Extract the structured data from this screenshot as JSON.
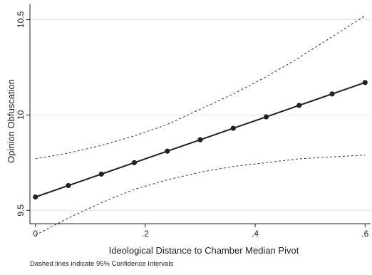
{
  "chart_data": {
    "type": "line",
    "title": "",
    "xlabel": "Ideological Distance to Chamber Median Pivot",
    "ylabel": "Opinion Obfuscation",
    "note": "Dashed lines indicate 95% Confidence Intervals",
    "xlim": [
      -0.01,
      0.61
    ],
    "ylim": [
      9.43,
      10.58
    ],
    "x_ticks": [
      0,
      0.2,
      0.4,
      0.6
    ],
    "x_tick_labels": [
      "0",
      ".2",
      ".4",
      ".6"
    ],
    "y_ticks": [
      9.5,
      10,
      10.5
    ],
    "y_tick_labels": [
      "9.5",
      "10",
      "10.5"
    ],
    "grid": "horizontal",
    "series": [
      {
        "role": "estimate",
        "style": "solid-with-markers",
        "x": [
          0,
          0.06,
          0.12,
          0.18,
          0.24,
          0.3,
          0.36,
          0.42,
          0.48,
          0.54,
          0.6
        ],
        "y": [
          9.57,
          9.63,
          9.69,
          9.75,
          9.81,
          9.87,
          9.93,
          9.99,
          10.05,
          10.11,
          10.17
        ]
      },
      {
        "role": "upper-95-ci",
        "style": "dashed",
        "x": [
          0,
          0.06,
          0.12,
          0.18,
          0.24,
          0.3,
          0.36,
          0.42,
          0.48,
          0.54,
          0.6
        ],
        "y": [
          9.77,
          9.8,
          9.84,
          9.89,
          9.95,
          10.03,
          10.11,
          10.2,
          10.3,
          10.41,
          10.52
        ]
      },
      {
        "role": "lower-95-ci",
        "style": "dashed",
        "x": [
          0,
          0.06,
          0.12,
          0.18,
          0.24,
          0.3,
          0.36,
          0.42,
          0.48,
          0.54,
          0.6
        ],
        "y": [
          9.37,
          9.46,
          9.54,
          9.61,
          9.66,
          9.7,
          9.73,
          9.75,
          9.77,
          9.78,
          9.79
        ]
      }
    ],
    "colors": {
      "estimate": "#222222",
      "ci": "#333333",
      "grid": "#e2e2e2",
      "axis": "#222222",
      "background": "#ffffff"
    }
  }
}
